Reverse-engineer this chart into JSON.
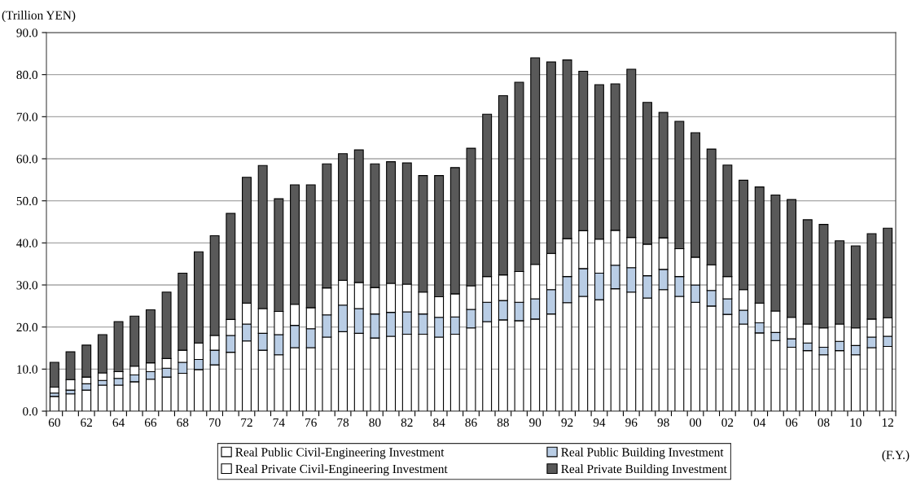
{
  "chart_data": {
    "type": "bar",
    "stacked": true,
    "ylabel": "(Trillion YEN)",
    "xlabel": "(F.Y.)",
    "categories": [
      "60",
      null,
      "62",
      null,
      "64",
      null,
      "66",
      null,
      "68",
      null,
      "70",
      null,
      "72",
      null,
      "74",
      null,
      "76",
      null,
      "78",
      null,
      "80",
      null,
      "82",
      null,
      "84",
      null,
      "86",
      null,
      "88",
      null,
      "90",
      null,
      "92",
      null,
      "94",
      null,
      "96",
      null,
      "98",
      null,
      "00",
      null,
      "02",
      null,
      "04",
      null,
      "06",
      null,
      "08",
      null,
      "10",
      null,
      "12"
    ],
    "series": [
      {
        "name": "Real Public Civil-Engineering Investment",
        "color": "#ffffff",
        "values": [
          3.5,
          4.1,
          5.0,
          6.2,
          6.2,
          7.0,
          7.6,
          8.1,
          9.0,
          9.9,
          11.0,
          14.0,
          16.7,
          14.5,
          13.4,
          15.1,
          15.1,
          17.6,
          18.9,
          18.5,
          17.4,
          17.8,
          18.3,
          18.3,
          17.6,
          18.3,
          19.8,
          21.3,
          21.7,
          21.5,
          21.9,
          23.1,
          25.8,
          27.3,
          26.5,
          29.1,
          28.3,
          26.9,
          28.9,
          27.3,
          25.9,
          25.0,
          23.0,
          20.7,
          18.6,
          16.8,
          15.2,
          14.4,
          13.4,
          14.4,
          13.4,
          15.1,
          15.4
        ]
      },
      {
        "name": "Real Public Building Investment",
        "color": "#b9cde5",
        "values": [
          0.8,
          0.9,
          1.5,
          1.1,
          1.6,
          1.6,
          1.8,
          2.1,
          2.6,
          2.4,
          3.5,
          4.0,
          4.0,
          4.0,
          4.8,
          5.3,
          4.5,
          5.3,
          6.3,
          5.9,
          5.7,
          5.7,
          5.3,
          4.8,
          4.7,
          4.1,
          4.4,
          4.6,
          4.6,
          4.4,
          4.8,
          5.8,
          6.2,
          6.6,
          6.3,
          5.6,
          5.8,
          5.3,
          4.8,
          4.7,
          4.1,
          3.7,
          3.7,
          3.3,
          2.4,
          1.9,
          2.0,
          1.8,
          1.8,
          2.2,
          2.2,
          2.5,
          2.4
        ]
      },
      {
        "name": "Real Private Civil-Engineering Investment",
        "color": "#ffffff",
        "values": [
          1.4,
          2.5,
          1.6,
          1.8,
          1.6,
          2.1,
          2.1,
          2.3,
          2.9,
          3.9,
          3.5,
          3.8,
          5.0,
          5.9,
          5.5,
          5.0,
          5.0,
          6.4,
          5.9,
          6.2,
          6.3,
          6.9,
          6.6,
          5.2,
          4.9,
          5.5,
          5.6,
          6.1,
          6.1,
          7.3,
          8.2,
          8.6,
          9.0,
          9.0,
          8.1,
          8.3,
          7.2,
          7.5,
          7.5,
          6.6,
          6.6,
          6.1,
          5.3,
          4.9,
          4.7,
          5.1,
          5.1,
          4.5,
          4.6,
          4.1,
          4.2,
          4.3,
          4.4
        ]
      },
      {
        "name": "Real Private Building Investment",
        "color": "#595959",
        "values": [
          5.9,
          6.6,
          7.6,
          9.1,
          11.9,
          11.9,
          12.6,
          15.8,
          18.3,
          21.7,
          23.7,
          25.2,
          29.9,
          34.0,
          26.8,
          28.4,
          29.2,
          29.5,
          30.1,
          31.5,
          29.4,
          28.9,
          28.8,
          27.7,
          28.8,
          30.0,
          32.7,
          38.6,
          42.6,
          45.0,
          49.1,
          45.5,
          42.5,
          37.9,
          36.7,
          34.8,
          40.0,
          33.7,
          29.8,
          30.3,
          29.6,
          27.5,
          26.5,
          26.0,
          27.6,
          27.6,
          28.0,
          24.8,
          24.6,
          19.8,
          19.5,
          20.3,
          21.3
        ]
      }
    ],
    "ylim": [
      0,
      90
    ],
    "yticks": [
      {
        "value": 0,
        "label": "0.0"
      },
      {
        "value": 10,
        "label": "10.0"
      },
      {
        "value": 20,
        "label": "20.0"
      },
      {
        "value": 30,
        "label": "30.0"
      },
      {
        "value": 40,
        "label": "40.0"
      },
      {
        "value": 50,
        "label": "50.0"
      },
      {
        "value": 60,
        "label": "60.0"
      },
      {
        "value": 70,
        "label": "70.0"
      },
      {
        "value": 80,
        "label": "80.0"
      },
      {
        "value": 90,
        "label": "90.0"
      }
    ],
    "grid": "y",
    "legend": "bottom"
  }
}
